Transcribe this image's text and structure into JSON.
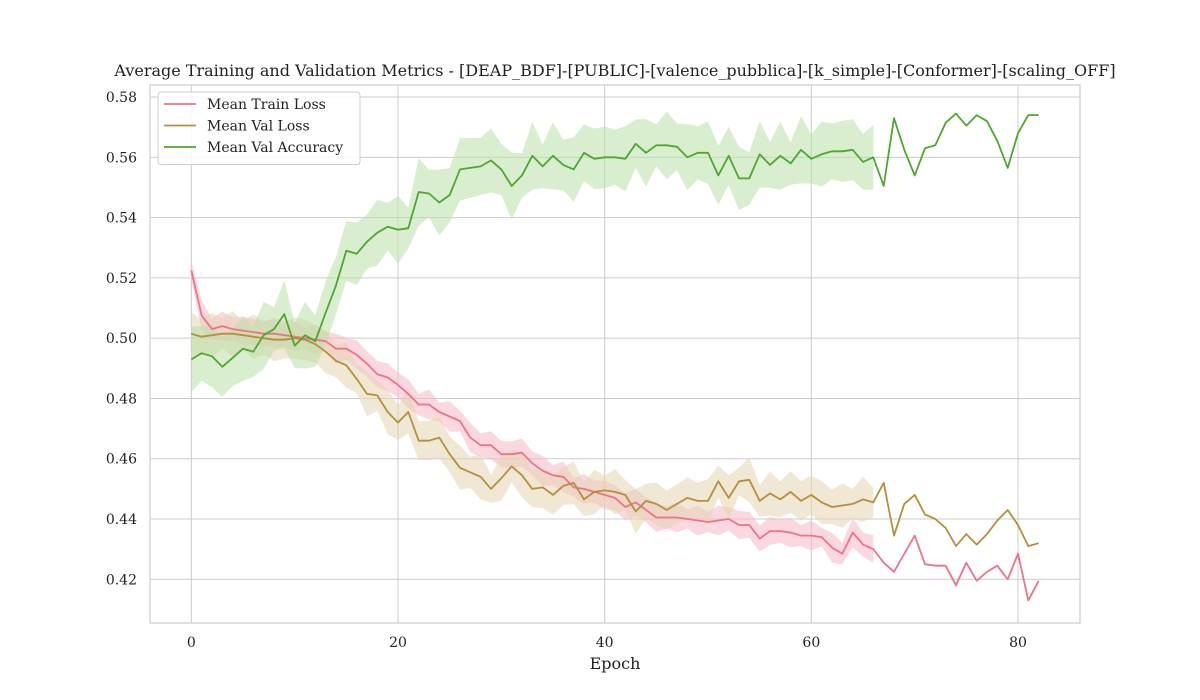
{
  "chart_data": {
    "type": "line",
    "title": "Average Training and Validation Metrics - [DEAP_BDF]-[PUBLIC]-[valence_pubblica]-[k_simple]-[Conformer]-[scaling_OFF]",
    "xlabel": "Epoch",
    "ylabel": "",
    "xlim": [
      -4,
      86
    ],
    "ylim": [
      0.4055,
      0.584
    ],
    "xticks": [
      0,
      20,
      40,
      60,
      80
    ],
    "yticks": [
      0.42,
      0.44,
      0.46,
      0.48,
      0.5,
      0.52,
      0.54,
      0.56,
      0.58
    ],
    "xtick_labels": [
      "0",
      "20",
      "40",
      "60",
      "80"
    ],
    "ytick_labels": [
      "0.42",
      "0.44",
      "0.46",
      "0.48",
      "0.50",
      "0.52",
      "0.54",
      "0.56",
      "0.58"
    ],
    "grid": true,
    "legend_position": "upper-left",
    "series": [
      {
        "name": "Mean Train Loss",
        "color": "#ec7489",
        "band_color": "#f7b6c4",
        "band_half_width": 0.004,
        "band_end_epoch": 66,
        "x_start": 0,
        "values": [
          0.5225,
          0.5075,
          0.503,
          0.504,
          0.503,
          0.5025,
          0.502,
          0.5015,
          0.5015,
          0.501,
          0.5005,
          0.5,
          0.4995,
          0.499,
          0.4965,
          0.4965,
          0.4945,
          0.4915,
          0.488,
          0.487,
          0.4845,
          0.4815,
          0.478,
          0.478,
          0.4755,
          0.474,
          0.4725,
          0.467,
          0.4645,
          0.4645,
          0.4615,
          0.4615,
          0.462,
          0.4585,
          0.456,
          0.4545,
          0.454,
          0.4505,
          0.45,
          0.449,
          0.448,
          0.447,
          0.444,
          0.4455,
          0.443,
          0.4405,
          0.4405,
          0.4405,
          0.44,
          0.4395,
          0.439,
          0.4395,
          0.44,
          0.438,
          0.438,
          0.4335,
          0.436,
          0.436,
          0.4355,
          0.4345,
          0.4345,
          0.434,
          0.4305,
          0.4285,
          0.4355,
          0.4315,
          0.43,
          0.4255,
          0.4225,
          0.4285,
          0.4345,
          0.425,
          0.4245,
          0.4245,
          0.418,
          0.4255,
          0.4195,
          0.4225,
          0.4245,
          0.42,
          0.4285,
          0.413,
          0.4195
        ]
      },
      {
        "name": "Mean Val Loss",
        "color": "#b5903a",
        "band_color": "#e3d4b0",
        "band_half_width": 0.006,
        "band_end_epoch": 66,
        "x_start": 0,
        "values": [
          0.5015,
          0.5005,
          0.501,
          0.5015,
          0.5015,
          0.501,
          0.5005,
          0.5,
          0.4995,
          0.4995,
          0.5,
          0.4995,
          0.498,
          0.4955,
          0.4925,
          0.491,
          0.4865,
          0.4815,
          0.481,
          0.4755,
          0.472,
          0.4755,
          0.466,
          0.466,
          0.467,
          0.4615,
          0.457,
          0.4555,
          0.454,
          0.45,
          0.4535,
          0.4575,
          0.4545,
          0.45,
          0.4505,
          0.448,
          0.451,
          0.452,
          0.4465,
          0.449,
          0.4495,
          0.449,
          0.448,
          0.4425,
          0.446,
          0.445,
          0.443,
          0.445,
          0.447,
          0.446,
          0.446,
          0.4525,
          0.447,
          0.4525,
          0.453,
          0.446,
          0.4485,
          0.4465,
          0.449,
          0.446,
          0.448,
          0.4455,
          0.444,
          0.4445,
          0.445,
          0.4465,
          0.4455,
          0.452,
          0.4345,
          0.445,
          0.448,
          0.4415,
          0.44,
          0.437,
          0.431,
          0.435,
          0.4315,
          0.435,
          0.4395,
          0.443,
          0.438,
          0.431,
          0.432
        ]
      },
      {
        "name": "Mean Val Accuracy",
        "color": "#4ea72e",
        "band_color": "#b9e0a8",
        "band_half_width": 0.009,
        "band_end_epoch": 66,
        "x_start": 0,
        "values": [
          0.493,
          0.495,
          0.494,
          0.4905,
          0.4935,
          0.4965,
          0.4955,
          0.501,
          0.503,
          0.508,
          0.4975,
          0.501,
          0.499,
          0.5085,
          0.5175,
          0.529,
          0.528,
          0.532,
          0.535,
          0.537,
          0.536,
          0.5365,
          0.5485,
          0.548,
          0.545,
          0.5475,
          0.556,
          0.5565,
          0.557,
          0.559,
          0.556,
          0.5505,
          0.554,
          0.5605,
          0.557,
          0.5605,
          0.5575,
          0.556,
          0.5615,
          0.5595,
          0.56,
          0.56,
          0.5595,
          0.5645,
          0.5615,
          0.564,
          0.564,
          0.5635,
          0.56,
          0.5615,
          0.5615,
          0.554,
          0.5605,
          0.553,
          0.553,
          0.561,
          0.5575,
          0.5605,
          0.558,
          0.5625,
          0.5595,
          0.561,
          0.562,
          0.562,
          0.5625,
          0.5585,
          0.56,
          0.5505,
          0.573,
          0.5625,
          0.554,
          0.563,
          0.564,
          0.5715,
          0.5745,
          0.5705,
          0.574,
          0.572,
          0.5655,
          0.5565,
          0.568,
          0.574,
          0.574
        ]
      }
    ]
  }
}
